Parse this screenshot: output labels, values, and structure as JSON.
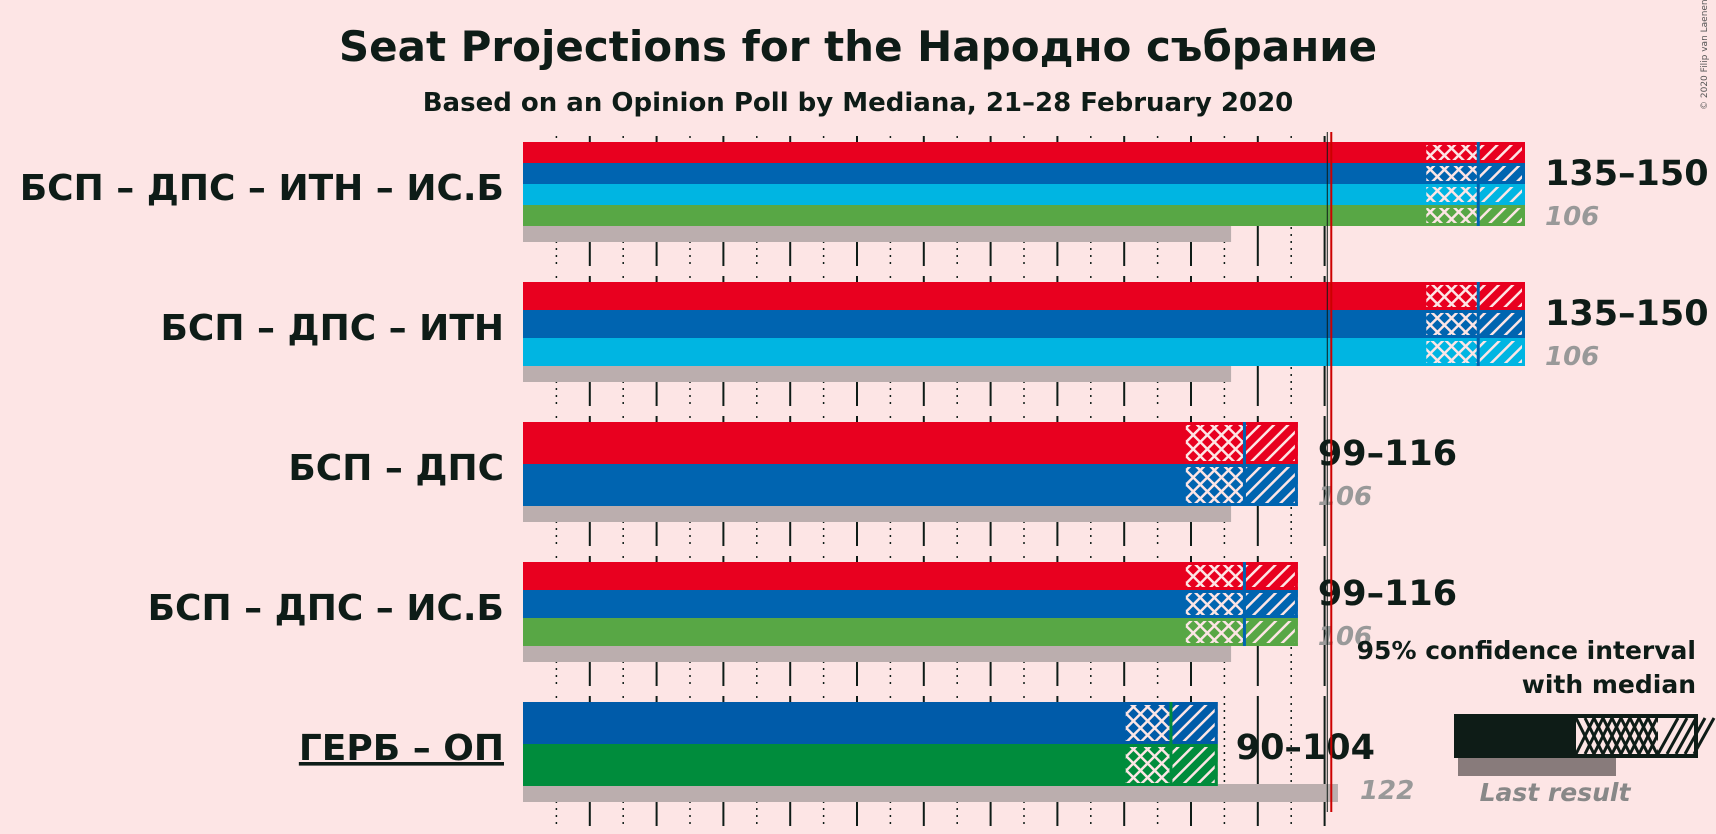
{
  "title": "Seat Projections for the Народно събрание",
  "subtitle": "Based on an Opinion Poll by Mediana, 21–28 February 2020",
  "copyright": "© 2020 Filip van Laenen",
  "legend": {
    "line1": "95% confidence interval",
    "line2": "with median",
    "last_result": "Last result"
  },
  "chart_data": {
    "type": "bar",
    "majority_line": 121,
    "xlim": [
      0,
      150
    ],
    "rows": [
      {
        "label": "БСП – ДПС – ИТН – ИС.Б",
        "underline": false,
        "low": 135,
        "median": 143,
        "high": 150,
        "range_label": "135–150",
        "last_result": 106,
        "last_label": "106",
        "colors": [
          "#e8001f",
          "#0064b0",
          "#00b5e2",
          "#58a745"
        ]
      },
      {
        "label": "БСП – ДПС – ИТН",
        "underline": false,
        "low": 135,
        "median": 143,
        "high": 150,
        "range_label": "135–150",
        "last_result": 106,
        "last_label": "106",
        "colors": [
          "#e8001f",
          "#0064b0",
          "#00b5e2"
        ]
      },
      {
        "label": "БСП – ДПС",
        "underline": false,
        "low": 99,
        "median": 108,
        "high": 116,
        "range_label": "99–116",
        "last_result": 106,
        "last_label": "106",
        "colors": [
          "#e8001f",
          "#0064b0"
        ]
      },
      {
        "label": "БСП – ДПС – ИС.Б",
        "underline": false,
        "low": 99,
        "median": 108,
        "high": 116,
        "range_label": "99–116",
        "last_result": 106,
        "last_label": "106",
        "colors": [
          "#e8001f",
          "#0064b0",
          "#58a745"
        ]
      },
      {
        "label": "ГЕРБ – ОП",
        "underline": true,
        "low": 90,
        "median": 97,
        "high": 104,
        "range_label": "90–104",
        "last_result": 122,
        "last_label": "122",
        "colors": [
          "#005ba9",
          "#008c3c"
        ]
      }
    ]
  }
}
